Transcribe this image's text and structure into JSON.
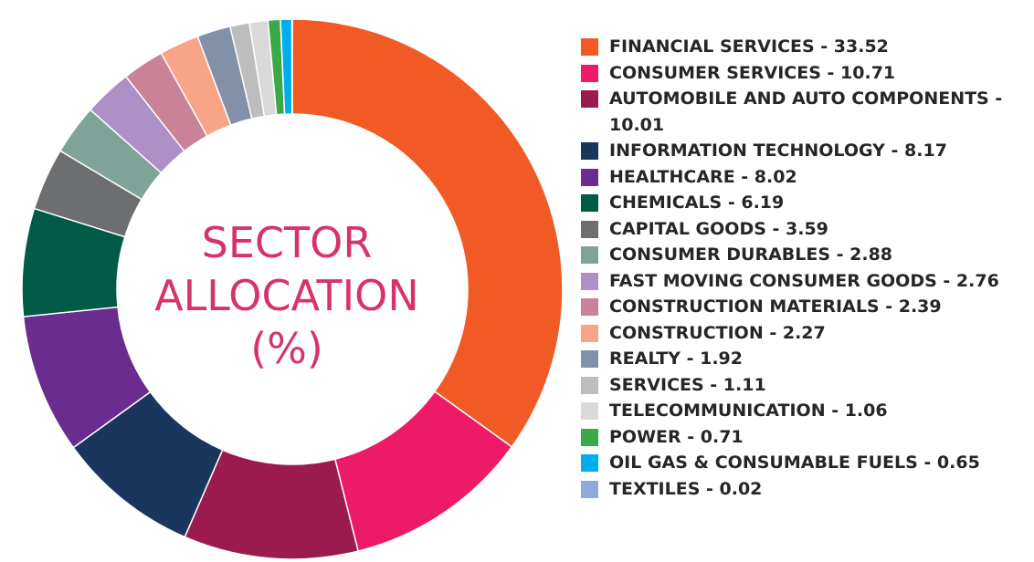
{
  "center_label": {
    "line1": "SECTOR",
    "line2": "ALLOCATION",
    "line3": "(%)",
    "color": "#d6336c"
  },
  "chart_data": {
    "type": "pie",
    "variant": "donut",
    "title": "SECTOR ALLOCATION (%)",
    "legend_position": "right",
    "start_angle": "top (12 o'clock), clockwise",
    "series": [
      {
        "name": "FINANCIAL SERVICES",
        "label": "FINANCIAL SERVICES - 33.52",
        "value": 33.52,
        "color": "#f15a24"
      },
      {
        "name": "CONSUMER SERVICES",
        "label": "CONSUMER SERVICES - 10.71",
        "value": 10.71,
        "color": "#ed1a67"
      },
      {
        "name": "AUTOMOBILE AND AUTO COMPONENTS",
        "label": "AUTOMOBILE AND AUTO COMPONENTS - 10.01",
        "value": 10.01,
        "color": "#9b1b4e"
      },
      {
        "name": "INFORMATION TECHNOLOGY",
        "label": "INFORMATION TECHNOLOGY - 8.17",
        "value": 8.17,
        "color": "#1b365d"
      },
      {
        "name": "HEALTHCARE",
        "label": "HEALTHCARE - 8.02",
        "value": 8.02,
        "color": "#6a2c8e"
      },
      {
        "name": "CHEMICALS",
        "label": "CHEMICALS - 6.19",
        "value": 6.19,
        "color": "#005a46"
      },
      {
        "name": "CAPITAL GOODS",
        "label": "CAPITAL GOODS - 3.59",
        "value": 3.59,
        "color": "#6d6e70"
      },
      {
        "name": "CONSUMER DURABLES",
        "label": "CONSUMER DURABLES - 2.88",
        "value": 2.88,
        "color": "#7fa398"
      },
      {
        "name": "FAST MOVING CONSUMER GOODS",
        "label": "FAST MOVING CONSUMER GOODS - 2.76",
        "value": 2.76,
        "color": "#ae8fc6"
      },
      {
        "name": "CONSTRUCTION MATERIALS",
        "label": "CONSTRUCTION MATERIALS - 2.39",
        "value": 2.39,
        "color": "#c98298"
      },
      {
        "name": "CONSTRUCTION",
        "label": "CONSTRUCTION - 2.27",
        "value": 2.27,
        "color": "#f8a488"
      },
      {
        "name": "REALTY",
        "label": "REALTY - 1.92",
        "value": 1.92,
        "color": "#8290a8"
      },
      {
        "name": "SERVICES",
        "label": "SERVICES - 1.11",
        "value": 1.11,
        "color": "#bdbdbd"
      },
      {
        "name": "TELECOMMUNICATION",
        "label": "TELECOMMUNICATION - 1.06",
        "value": 1.06,
        "color": "#d9d9d9"
      },
      {
        "name": "POWER",
        "label": "POWER  - 0.71",
        "value": 0.71,
        "color": "#3aaa48"
      },
      {
        "name": "OIL GAS & CONSUMABLE FUELS",
        "label": "OIL GAS & CONSUMABLE FUELS  - 0.65",
        "value": 0.65,
        "color": "#00aeef"
      },
      {
        "name": "TEXTILES",
        "label": "TEXTILES  - 0.02",
        "value": 0.02,
        "color": "#8eaadb"
      }
    ]
  }
}
